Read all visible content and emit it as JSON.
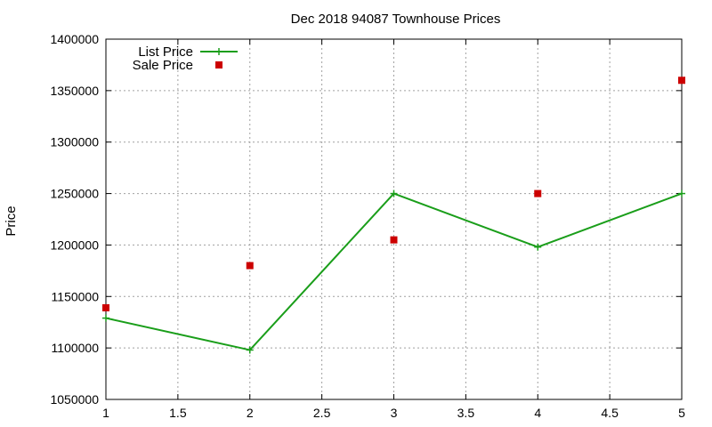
{
  "chart_data": {
    "type": "line",
    "title": "Dec 2018 94087 Townhouse Prices",
    "xlabel": "",
    "ylabel": "Price",
    "xlim": [
      1,
      5
    ],
    "ylim": [
      1050000,
      1400000
    ],
    "xticks": [
      1,
      1.5,
      2,
      2.5,
      3,
      3.5,
      4,
      4.5,
      5
    ],
    "xtick_labels": [
      "1",
      "1.5",
      "2",
      "2.5",
      "3",
      "3.5",
      "4",
      "4.5",
      "5"
    ],
    "yticks": [
      1050000,
      1100000,
      1150000,
      1200000,
      1250000,
      1300000,
      1350000,
      1400000
    ],
    "ytick_labels": [
      "1050000",
      "1100000",
      "1150000",
      "1200000",
      "1250000",
      "1300000",
      "1350000",
      "1400000"
    ],
    "grid": true,
    "legend_position": "top-left",
    "series": [
      {
        "name": "List Price",
        "style": "line-plus",
        "color": "#1a9e1a",
        "x": [
          1,
          2,
          3,
          4,
          5
        ],
        "y": [
          1129000,
          1098000,
          1250000,
          1198000,
          1250000
        ]
      },
      {
        "name": "Sale Price",
        "style": "square-points",
        "color": "#cc0000",
        "x": [
          1,
          2,
          3,
          4,
          5
        ],
        "y": [
          1139000,
          1180000,
          1205000,
          1250000,
          1360000
        ]
      }
    ]
  }
}
